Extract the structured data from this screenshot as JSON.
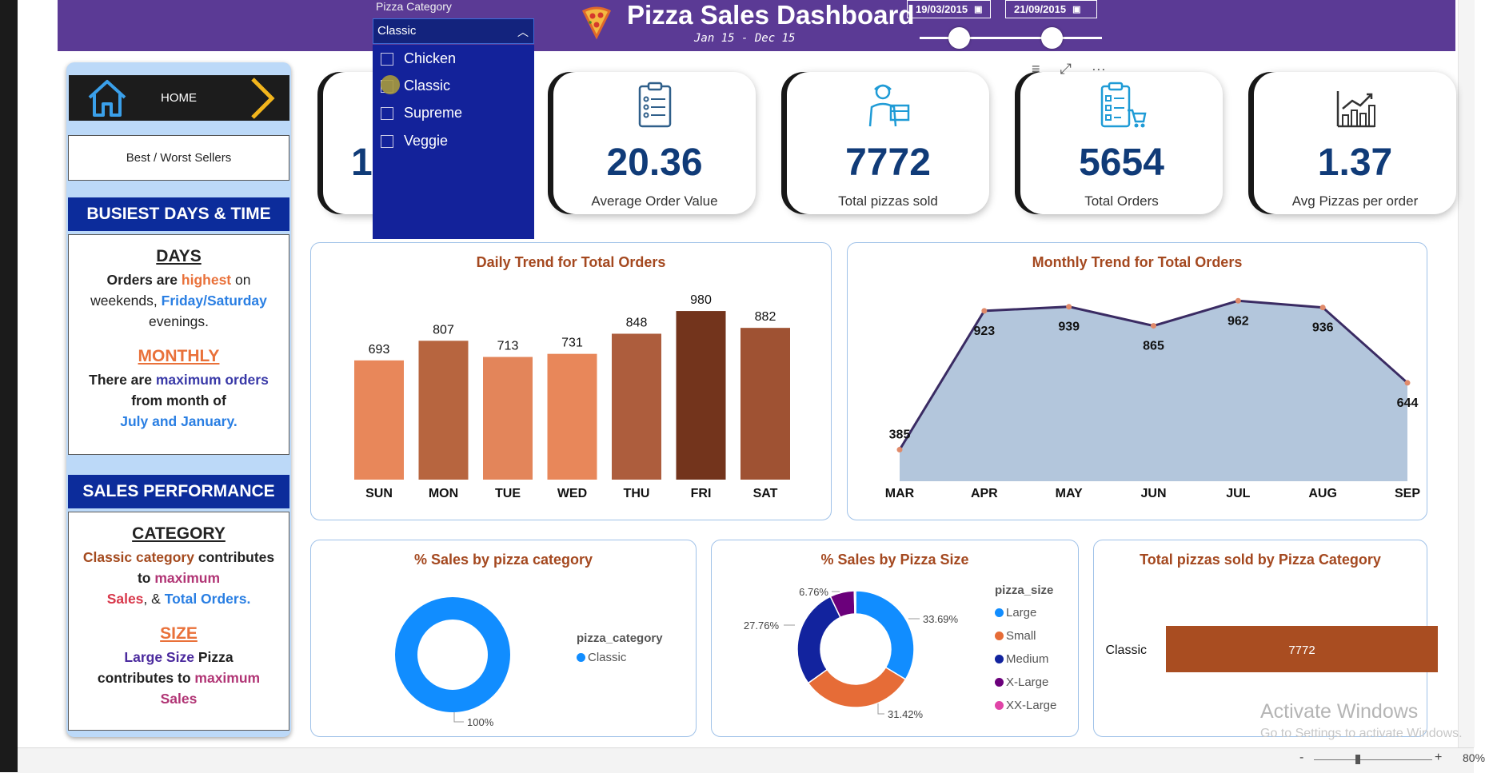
{
  "header": {
    "title": "Pizza Sales Dashboard",
    "subtitle": "Jan 15 - Dec 15",
    "date_start": "19/03/2015",
    "date_end": "21/09/2015",
    "bg_color": "#5b3a95"
  },
  "filter": {
    "label": "Pizza Category",
    "selected": "Classic",
    "options": [
      "Chicken",
      "Classic",
      "Supreme",
      "Veggie"
    ]
  },
  "nav": {
    "home_label": "HOME",
    "best_worst_label": "Best / Worst Sellers",
    "busiest_heading": "BUSIEST DAYS & TIME",
    "sales_heading": "SALES PERFORMANCE"
  },
  "insights": {
    "days_heading": "DAYS",
    "days_l1a": "Orders are ",
    "days_l1b": "highest",
    "days_l1c": " on",
    "days_l2a": "weekends, ",
    "days_l2b": "Friday/Saturday",
    "days_l3": "evenings.",
    "monthly_heading": "MONTHLY",
    "monthly_l1a": "There are ",
    "monthly_l1b": "maximum orders",
    "monthly_l2": "from month of",
    "monthly_l3": "July and January.",
    "category_heading": "CATEGORY",
    "cat_l1a": "Classic category",
    "cat_l1b": " contributes",
    "cat_l2a": "to ",
    "cat_l2b": "maximum",
    "cat_l3a": "Sales",
    "cat_l3b": ", & ",
    "cat_l3c": "Total Orders.",
    "size_heading": "SIZE",
    "size_l1a": "Large Size",
    "size_l1b": " Pizza",
    "size_l2a": "contributes to ",
    "size_l2b": "maximum",
    "size_l3": "Sales"
  },
  "kpis": [
    {
      "value": "1",
      "label": ""
    },
    {
      "value": "20.36",
      "label": "Average Order Value"
    },
    {
      "value": "7772",
      "label": "Total pizzas sold"
    },
    {
      "value": "5654",
      "label": "Total Orders"
    },
    {
      "value": "1.37",
      "label": "Avg Pizzas per order"
    }
  ],
  "visual_tools": "≡ ⤢ ⋯",
  "chart_data": [
    {
      "type": "bar",
      "title": "Daily Trend for Total Orders",
      "categories": [
        "SUN",
        "MON",
        "TUE",
        "WED",
        "THU",
        "FRI",
        "SAT"
      ],
      "values": [
        693,
        807,
        713,
        731,
        848,
        980,
        882
      ],
      "colors": [
        "#e8875a",
        "#b7653f",
        "#e3855a",
        "#e8875a",
        "#ad5d3d",
        "#73341c",
        "#9f5233"
      ],
      "ylim": [
        0,
        1050
      ]
    },
    {
      "type": "area",
      "title": "Monthly Trend for Total Orders",
      "categories": [
        "MAR",
        "APR",
        "MAY",
        "JUN",
        "JUL",
        "AUG",
        "SEP"
      ],
      "values": [
        385,
        923,
        939,
        865,
        962,
        936,
        644
      ],
      "ylim": [
        300,
        1000
      ],
      "fill": "#b3c6dc",
      "line": "#3a2b63"
    },
    {
      "type": "pie",
      "title": "% Sales by pizza category",
      "legend_title": "pizza_category",
      "labels": [
        "Classic"
      ],
      "values": [
        100
      ],
      "value_labels": [
        "100%"
      ],
      "colors": [
        "#118dff"
      ]
    },
    {
      "type": "pie",
      "title": "% Sales by Pizza Size",
      "legend_title": "pizza_size",
      "labels": [
        "Large",
        "Small",
        "Medium",
        "X-Large",
        "XX-Large"
      ],
      "values": [
        33.69,
        31.42,
        27.76,
        6.76,
        0.37
      ],
      "value_labels": [
        "33.69%",
        "31.42%",
        "27.76%",
        "6.76%",
        ""
      ],
      "colors": [
        "#118dff",
        "#e66c37",
        "#12239e",
        "#6b007b",
        "#e044a7"
      ]
    },
    {
      "type": "bar",
      "title": "Total pizzas sold by Pizza Category",
      "categories": [
        "Classic"
      ],
      "values": [
        7772
      ],
      "value_labels": [
        "7772"
      ],
      "colors": [
        "#a94d21"
      ],
      "xlim": [
        0,
        7772
      ]
    }
  ],
  "watermark": {
    "line1": "Activate Windows",
    "line2": "Go to Settings to activate Windows."
  },
  "statusbar": {
    "zoom_minus": "-",
    "zoom_plus": "+",
    "zoom_pct": "80%"
  }
}
